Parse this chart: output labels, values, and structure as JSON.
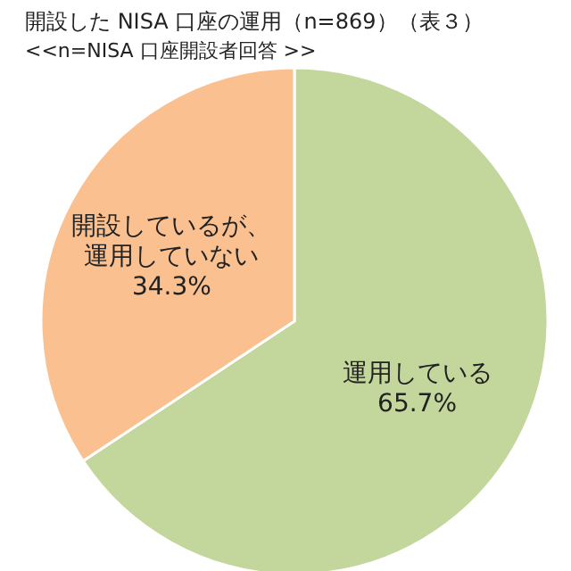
{
  "chart_data": {
    "type": "pie",
    "title": "開設した NISA 口座の運用（n=869）（表３）",
    "subtitle": "<<n=NISA 口座開設者回答 >>",
    "categories": [
      "運用している",
      "開設しているが、運用していない"
    ],
    "values": [
      65.7,
      34.3
    ],
    "colors": [
      "#c3d69b",
      "#fac090"
    ],
    "value_labels": [
      "65.7%",
      "34.3%"
    ],
    "legend": false
  }
}
